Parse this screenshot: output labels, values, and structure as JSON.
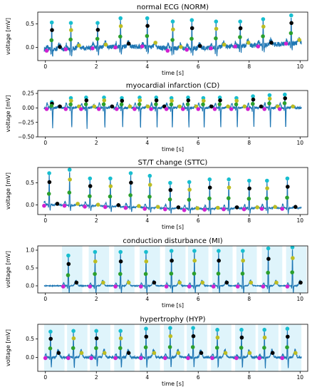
{
  "colors": {
    "ecg_line": "#1f77b4",
    "marker_cyan": "#17becf",
    "marker_black": "#000000",
    "marker_green": "#2ca02c",
    "marker_magenta": "#d020d0",
    "marker_yellow": "#bcbd22",
    "marker_red": "#d62728",
    "marker_orange": "#ff7f0e",
    "marker_purple": "#9467bd",
    "highlight_blue": "#b9e7f7",
    "highlight_red": "#f4c6c6"
  },
  "chart_data": [
    {
      "type": "line",
      "title": "normal ECG (NORM)",
      "xlabel": "time [s]",
      "ylabel": "voltage [mV]",
      "xlim": [
        -0.3,
        10.3
      ],
      "ylim": [
        -0.28,
        0.75
      ],
      "xticks": [
        0,
        2,
        4,
        6,
        8,
        10
      ],
      "yticks": [
        0.0,
        0.5
      ],
      "ytick_labels": [
        "0.0",
        "0.5"
      ],
      "beats_s": [
        0.25,
        1.0,
        2.05,
        2.95,
        4.0,
        5.0,
        5.75,
        6.7,
        7.65,
        8.55,
        9.65
      ],
      "r_peak_mv": [
        0.53,
        0.52,
        0.52,
        0.62,
        0.62,
        0.55,
        0.58,
        0.55,
        0.55,
        0.6,
        0.68
      ],
      "baseline_mv": [
        -0.05,
        -0.02,
        0.0,
        0.02,
        0.04,
        -0.05,
        -0.03,
        0.0,
        0.04,
        0.04,
        0.1
      ],
      "q_depth_mv": 0.12,
      "s_depth_mv": 0.15,
      "t_height_mv": 0.1,
      "noise": 0.05,
      "highlight": "none"
    },
    {
      "type": "line",
      "title": "myocardial infarction (CD)",
      "xlabel": "time [s]",
      "ylabel": "voltage [mV]",
      "xlim": [
        -0.3,
        10.3
      ],
      "ylim": [
        -0.5,
        0.3
      ],
      "xticks": [
        0,
        2,
        4,
        6,
        8,
        10
      ],
      "yticks": [
        0.25,
        0.0,
        -0.25,
        -0.5
      ],
      "ytick_labels": [
        "0.25",
        "0.00",
        "−0.25",
        "−0.50"
      ],
      "beats_s": [
        0.25,
        1.0,
        1.6,
        2.3,
        3.0,
        3.7,
        4.35,
        4.95,
        5.6,
        6.2,
        6.85,
        7.5,
        8.15,
        8.8,
        9.4
      ],
      "r_peak_mv": [
        0.1,
        0.17,
        0.18,
        0.18,
        0.17,
        0.18,
        0.18,
        0.17,
        0.18,
        0.17,
        0.18,
        0.17,
        0.2,
        0.22,
        0.23
      ],
      "baseline_mv": [
        0.0,
        0.0,
        0.0,
        0.0,
        0.0,
        0.0,
        0.0,
        0.0,
        0.0,
        0.0,
        0.0,
        0.0,
        0.0,
        0.0,
        0.0
      ],
      "q_depth_mv": 0.05,
      "s_depth_mv": 0.35,
      "t_height_mv": 0.04,
      "noise": 0.02,
      "highlight": "none"
    },
    {
      "type": "line",
      "title": "ST/T change (STTC)",
      "xlabel": "time [s]",
      "ylabel": "voltage [mV]",
      "xlim": [
        -0.3,
        10.3
      ],
      "ylim": [
        -0.22,
        0.85
      ],
      "xticks": [
        0,
        2,
        4,
        6,
        8,
        10
      ],
      "yticks": [
        0.0,
        0.5
      ],
      "ytick_labels": [
        "0.0",
        "0.5"
      ],
      "beats_s": [
        0.15,
        0.95,
        1.75,
        2.55,
        3.35,
        4.1,
        4.9,
        5.65,
        6.45,
        7.2,
        8.0,
        8.7,
        9.5
      ],
      "r_peak_mv": [
        0.72,
        0.8,
        0.6,
        0.6,
        0.72,
        0.66,
        0.5,
        0.52,
        0.58,
        0.58,
        0.55,
        0.55,
        0.6
      ],
      "baseline_mv": [
        0.0,
        0.0,
        -0.02,
        -0.03,
        -0.05,
        -0.07,
        -0.08,
        -0.1,
        -0.09,
        -0.08,
        -0.08,
        -0.07,
        -0.07
      ],
      "q_depth_mv": 0.05,
      "s_depth_mv": 0.12,
      "t_height_mv": 0.04,
      "noise": 0.015,
      "highlight": "none"
    },
    {
      "type": "line",
      "title": "conduction disturbance (MI)",
      "xlabel": "time [s]",
      "ylabel": "voltage [mV]",
      "xlim": [
        -0.3,
        10.3
      ],
      "ylim": [
        -0.2,
        1.12
      ],
      "xticks": [
        0,
        2,
        4,
        6,
        8,
        10
      ],
      "yticks": [
        0.0,
        0.5,
        1.0
      ],
      "ytick_labels": [
        "0.0",
        "0.5",
        "1.0"
      ],
      "beats_s": [
        0.9,
        1.95,
        2.95,
        3.95,
        4.95,
        5.85,
        6.8,
        7.75,
        8.75,
        9.7
      ],
      "r_peak_mv": [
        0.85,
        0.95,
        0.95,
        0.95,
        0.98,
        0.98,
        0.98,
        0.98,
        1.05,
        1.08
      ],
      "baseline_mv": [
        0.0,
        0.0,
        0.0,
        0.0,
        0.0,
        0.0,
        0.0,
        0.0,
        0.0,
        0.0
      ],
      "q_depth_mv": 0.08,
      "s_depth_mv": 0.2,
      "t_height_mv": 0.15,
      "noise": 0.01,
      "highlight": "blue"
    },
    {
      "type": "line",
      "title": "hypertrophy (HYP)",
      "xlabel": "time [s]",
      "ylabel": "voltage [mV]",
      "xlim": [
        -0.3,
        10.3
      ],
      "ylim": [
        -0.38,
        0.9
      ],
      "xticks": [
        0,
        2,
        4,
        6,
        8,
        10
      ],
      "yticks": [
        0.5,
        0.0
      ],
      "ytick_labels": [
        "0.5",
        "0.0"
      ],
      "beats_s": [
        0.2,
        1.1,
        2.0,
        2.95,
        3.95,
        4.9,
        5.8,
        6.75,
        7.7,
        8.6,
        9.5
      ],
      "r_peak_mv": [
        0.7,
        0.72,
        0.72,
        0.72,
        0.78,
        0.8,
        0.8,
        0.75,
        0.75,
        0.75,
        0.78
      ],
      "baseline_mv": [
        0.0,
        0.0,
        0.0,
        0.0,
        0.0,
        0.0,
        0.0,
        0.0,
        0.0,
        0.0,
        0.0
      ],
      "q_depth_mv": 0.05,
      "s_depth_mv": 0.28,
      "t_height_mv": 0.2,
      "noise": 0.03,
      "highlight": "blue"
    }
  ]
}
